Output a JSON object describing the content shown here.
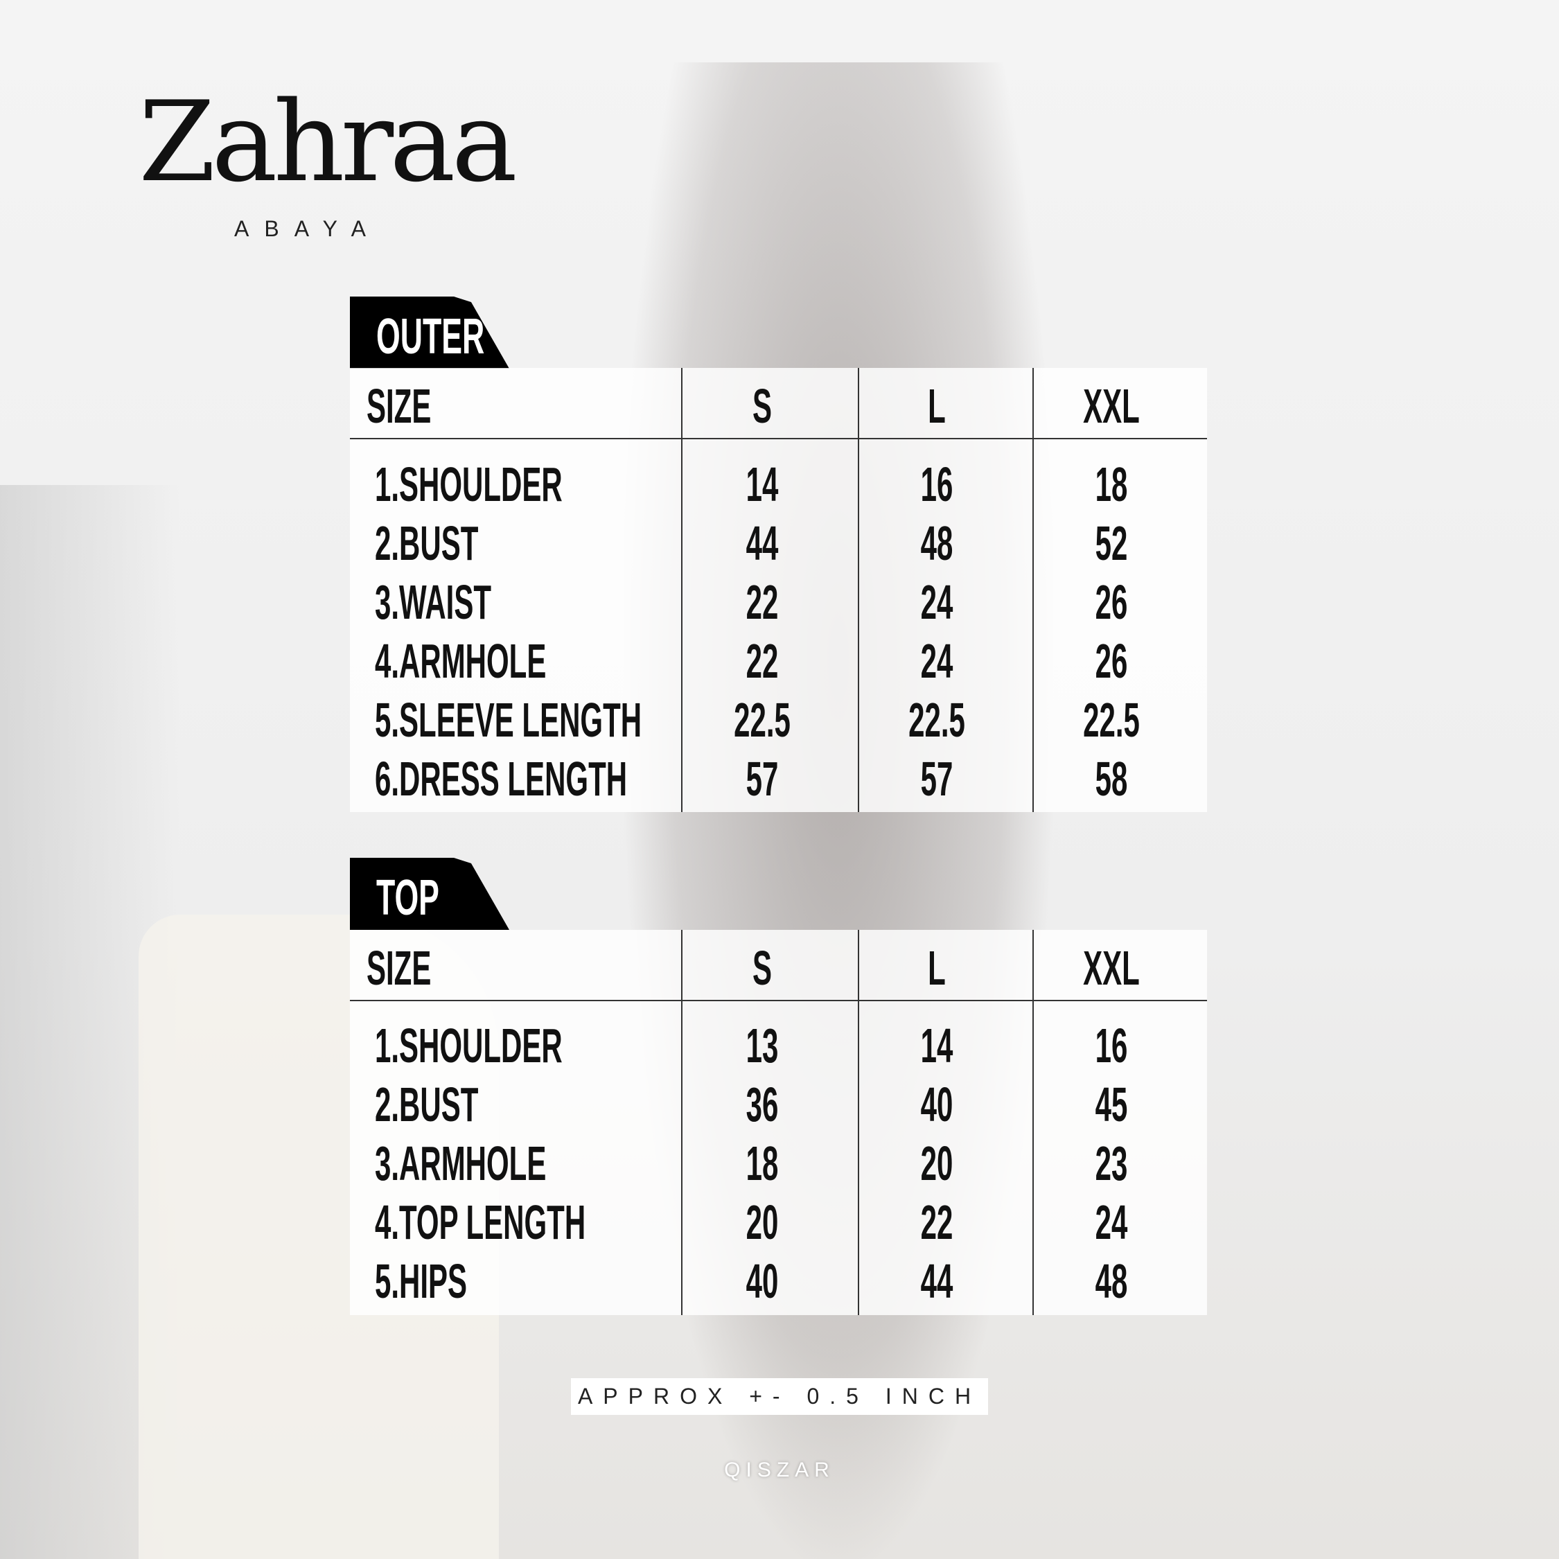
{
  "brand": {
    "name": "Zahraa",
    "subtitle": "ABAYA"
  },
  "tables": [
    {
      "title": "OUTER",
      "header": [
        "SIZE",
        "S",
        "L",
        "XXL"
      ],
      "rows": [
        [
          "1.SHOULDER",
          "14",
          "16",
          "18"
        ],
        [
          "2.BUST",
          "44",
          "48",
          "52"
        ],
        [
          "3.WAIST",
          "22",
          "24",
          "26"
        ],
        [
          "4.ARMHOLE",
          "22",
          "24",
          "26"
        ],
        [
          "5.SLEEVE LENGTH",
          "22.5",
          "22.5",
          "22.5"
        ],
        [
          "6.DRESS LENGTH",
          "57",
          "57",
          "58"
        ]
      ]
    },
    {
      "title": "TOP",
      "header": [
        "SIZE",
        "S",
        "L",
        "XXL"
      ],
      "rows": [
        [
          "1.SHOULDER",
          "13",
          "14",
          "16"
        ],
        [
          "2.BUST",
          "36",
          "40",
          "45"
        ],
        [
          "3.ARMHOLE",
          "18",
          "20",
          "23"
        ],
        [
          "4.TOP LENGTH",
          "20",
          "22",
          "24"
        ],
        [
          "5.HIPS",
          "40",
          "44",
          "48"
        ]
      ]
    }
  ],
  "note": "APPROX +- 0.5 INCH",
  "footer": "QISZAR"
}
